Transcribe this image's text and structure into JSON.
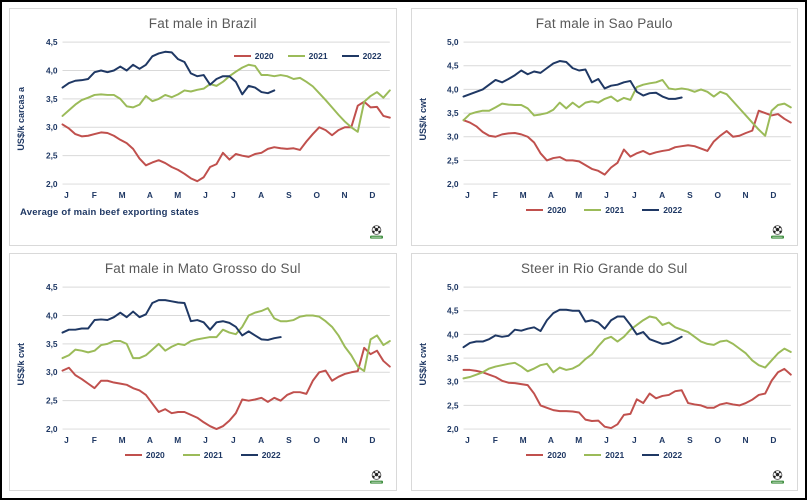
{
  "window": {
    "outer_border": "#000000",
    "panel_border": "#d9d9d9",
    "background": "#ffffff"
  },
  "palette": {
    "2020": "#c0504d",
    "2021": "#9bbb59",
    "2022": "#1f3864",
    "grid": "#d9d9d9",
    "axis_text": "#1f3864",
    "title_text": "#595959",
    "logo_banner": "#3f8f3f"
  },
  "legend_labels": {
    "s2020": "2020",
    "s2021": "2021",
    "s2022": "2022"
  },
  "x_month_labels": [
    "J",
    "F",
    "M",
    "A",
    "M",
    "J",
    "J",
    "A",
    "S",
    "O",
    "N",
    "D"
  ],
  "logo": {
    "icon": "soccer-ball-globe-logo"
  },
  "chart_data": [
    {
      "type": "line",
      "title": "Fat male in Brazil",
      "ylabel": "US$/k carcas a",
      "footnote": "Average of main beef exporting states",
      "legend_position": "top-right-inside",
      "grid": true,
      "ylim": [
        2.0,
        4.5
      ],
      "ytick_step": 0.5,
      "ytick_labels": [
        "2,0",
        "2,5",
        "3,0",
        "3,5",
        "4,0",
        "4,5"
      ],
      "x_unit": "weekly (Jan-Dec)",
      "series": [
        {
          "name": "2020",
          "values": [
            3.05,
            2.98,
            2.88,
            2.84,
            2.85,
            2.88,
            2.91,
            2.9,
            2.85,
            2.78,
            2.72,
            2.62,
            2.45,
            2.33,
            2.38,
            2.42,
            2.37,
            2.3,
            2.25,
            2.18,
            2.1,
            2.05,
            2.12,
            2.3,
            2.35,
            2.55,
            2.43,
            2.53,
            2.5,
            2.48,
            2.53,
            2.55,
            2.62,
            2.65,
            2.63,
            2.62,
            2.63,
            2.6,
            2.75,
            2.88,
            3.0,
            2.95,
            2.86,
            2.95,
            3.0,
            3.0,
            3.38,
            3.45,
            3.35,
            3.36,
            3.2,
            3.17
          ]
        },
        {
          "name": "2021",
          "values": [
            3.2,
            3.3,
            3.4,
            3.48,
            3.52,
            3.57,
            3.58,
            3.57,
            3.57,
            3.5,
            3.37,
            3.35,
            3.4,
            3.55,
            3.46,
            3.5,
            3.57,
            3.53,
            3.58,
            3.65,
            3.63,
            3.66,
            3.68,
            3.76,
            3.73,
            3.8,
            3.9,
            3.98,
            4.05,
            4.1,
            4.08,
            3.92,
            3.92,
            3.9,
            3.92,
            3.9,
            3.85,
            3.87,
            3.8,
            3.72,
            3.6,
            3.48,
            3.35,
            3.22,
            3.1,
            3.0,
            2.92,
            3.45,
            3.55,
            3.62,
            3.52,
            3.65
          ]
        },
        {
          "name": "2022",
          "values": [
            3.7,
            3.78,
            3.82,
            3.83,
            3.85,
            3.97,
            4.0,
            3.97,
            4.0,
            4.07,
            4.0,
            4.1,
            4.03,
            4.1,
            4.25,
            4.3,
            4.33,
            4.32,
            4.2,
            4.15,
            3.95,
            3.9,
            3.92,
            3.75,
            3.85,
            3.9,
            3.9,
            3.8,
            3.58,
            3.73,
            3.7,
            3.62,
            3.6,
            3.65
          ]
        }
      ]
    },
    {
      "type": "line",
      "title": "Fat male in Sao Paulo",
      "ylabel": "US$/k cwt",
      "footnote": "",
      "legend_position": "bottom-center",
      "grid": true,
      "ylim": [
        2.0,
        5.0
      ],
      "ytick_step": 0.5,
      "ytick_labels": [
        "2,0",
        "2,5",
        "3,0",
        "3,5",
        "4,0",
        "4,5",
        "5,0"
      ],
      "x_unit": "weekly (Jan-Dec)",
      "series": [
        {
          "name": "2020",
          "values": [
            3.35,
            3.3,
            3.22,
            3.1,
            3.02,
            3.0,
            3.05,
            3.07,
            3.08,
            3.05,
            3.0,
            2.88,
            2.65,
            2.5,
            2.55,
            2.57,
            2.5,
            2.5,
            2.48,
            2.4,
            2.32,
            2.28,
            2.2,
            2.35,
            2.45,
            2.73,
            2.58,
            2.65,
            2.7,
            2.63,
            2.67,
            2.7,
            2.72,
            2.78,
            2.8,
            2.82,
            2.8,
            2.75,
            2.7,
            2.9,
            3.02,
            3.12,
            3.0,
            3.02,
            3.08,
            3.13,
            3.55,
            3.5,
            3.45,
            3.48,
            3.38,
            3.3
          ]
        },
        {
          "name": "2021",
          "values": [
            3.35,
            3.48,
            3.52,
            3.55,
            3.55,
            3.62,
            3.7,
            3.68,
            3.67,
            3.67,
            3.6,
            3.45,
            3.47,
            3.5,
            3.57,
            3.72,
            3.6,
            3.72,
            3.62,
            3.72,
            3.75,
            3.72,
            3.8,
            3.85,
            3.75,
            3.82,
            3.78,
            4.05,
            4.1,
            4.13,
            4.15,
            4.2,
            4.02,
            4.0,
            4.02,
            4.0,
            3.95,
            4.0,
            3.95,
            3.85,
            3.95,
            3.9,
            3.75,
            3.6,
            3.45,
            3.3,
            3.15,
            3.02,
            3.55,
            3.67,
            3.7,
            3.62
          ]
        },
        {
          "name": "2022",
          "values": [
            3.85,
            3.9,
            3.95,
            4.0,
            4.1,
            4.2,
            4.15,
            4.22,
            4.3,
            4.4,
            4.32,
            4.38,
            4.35,
            4.45,
            4.55,
            4.6,
            4.58,
            4.45,
            4.4,
            4.42,
            4.15,
            4.22,
            4.02,
            4.08,
            4.1,
            4.15,
            4.18,
            3.95,
            3.87,
            3.92,
            3.93,
            3.85,
            3.8,
            3.8,
            3.83
          ]
        }
      ]
    },
    {
      "type": "line",
      "title": "Fat male in Mato Grosso do Sul",
      "ylabel": "US$/k cwt",
      "footnote": "",
      "legend_position": "bottom-center",
      "grid": true,
      "ylim": [
        2.0,
        4.5
      ],
      "ytick_step": 0.5,
      "ytick_labels": [
        "2,0",
        "2,5",
        "3,0",
        "3,5",
        "4,0",
        "4,5"
      ],
      "x_unit": "weekly (Jan-Dec)",
      "series": [
        {
          "name": "2020",
          "values": [
            3.03,
            3.08,
            2.95,
            2.88,
            2.8,
            2.72,
            2.85,
            2.85,
            2.82,
            2.8,
            2.78,
            2.72,
            2.68,
            2.6,
            2.45,
            2.3,
            2.35,
            2.28,
            2.3,
            2.3,
            2.25,
            2.2,
            2.12,
            2.05,
            2.0,
            2.05,
            2.15,
            2.28,
            2.52,
            2.5,
            2.52,
            2.55,
            2.48,
            2.55,
            2.5,
            2.6,
            2.65,
            2.65,
            2.62,
            2.85,
            3.0,
            3.03,
            2.85,
            2.92,
            2.97,
            3.0,
            3.02,
            3.43,
            3.32,
            3.38,
            3.2,
            3.1
          ]
        },
        {
          "name": "2021",
          "values": [
            3.25,
            3.3,
            3.4,
            3.38,
            3.35,
            3.38,
            3.48,
            3.5,
            3.55,
            3.55,
            3.5,
            3.25,
            3.25,
            3.3,
            3.4,
            3.5,
            3.38,
            3.45,
            3.5,
            3.48,
            3.55,
            3.58,
            3.6,
            3.62,
            3.62,
            3.75,
            3.7,
            3.67,
            3.8,
            4.0,
            4.05,
            4.08,
            4.13,
            3.95,
            3.9,
            3.9,
            3.92,
            3.98,
            4.0,
            4.0,
            3.98,
            3.9,
            3.8,
            3.65,
            3.45,
            3.3,
            3.1,
            3.02,
            3.58,
            3.65,
            3.48,
            3.55
          ]
        },
        {
          "name": "2022",
          "values": [
            3.7,
            3.75,
            3.75,
            3.77,
            3.77,
            3.92,
            3.93,
            3.92,
            3.97,
            4.05,
            3.97,
            4.07,
            3.97,
            4.02,
            4.22,
            4.27,
            4.27,
            4.25,
            4.23,
            4.22,
            3.9,
            3.92,
            3.88,
            3.75,
            3.88,
            3.9,
            3.87,
            3.8,
            3.65,
            3.72,
            3.65,
            3.58,
            3.57,
            3.6,
            3.62
          ]
        }
      ]
    },
    {
      "type": "line",
      "title": "Steer in Rio Grande do Sul",
      "ylabel": "US$/k cwt",
      "footnote": "",
      "legend_position": "bottom-center",
      "grid": true,
      "ylim": [
        2.0,
        5.0
      ],
      "ytick_step": 0.5,
      "ytick_labels": [
        "2,0",
        "2,5",
        "3,0",
        "3,5",
        "4,0",
        "4,5",
        "5,0"
      ],
      "x_unit": "weekly (Jan-Dec)",
      "series": [
        {
          "name": "2020",
          "values": [
            3.25,
            3.25,
            3.23,
            3.2,
            3.15,
            3.1,
            3.02,
            2.98,
            2.97,
            2.95,
            2.93,
            2.75,
            2.5,
            2.45,
            2.4,
            2.38,
            2.38,
            2.37,
            2.35,
            2.2,
            2.17,
            2.18,
            2.05,
            2.02,
            2.1,
            2.3,
            2.32,
            2.63,
            2.55,
            2.75,
            2.65,
            2.7,
            2.72,
            2.8,
            2.82,
            2.55,
            2.52,
            2.5,
            2.45,
            2.45,
            2.52,
            2.55,
            2.52,
            2.5,
            2.55,
            2.62,
            2.72,
            2.75,
            3.02,
            3.2,
            3.27,
            3.15
          ]
        },
        {
          "name": "2021",
          "values": [
            3.07,
            3.1,
            3.15,
            3.2,
            3.28,
            3.32,
            3.35,
            3.38,
            3.4,
            3.32,
            3.22,
            3.28,
            3.35,
            3.38,
            3.2,
            3.3,
            3.25,
            3.28,
            3.35,
            3.48,
            3.58,
            3.75,
            3.9,
            3.95,
            3.85,
            3.95,
            4.1,
            4.2,
            4.3,
            4.38,
            4.35,
            4.2,
            4.25,
            4.15,
            4.1,
            4.05,
            3.95,
            3.85,
            3.8,
            3.78,
            3.85,
            3.87,
            3.8,
            3.7,
            3.6,
            3.45,
            3.35,
            3.3,
            3.45,
            3.6,
            3.7,
            3.63
          ]
        },
        {
          "name": "2022",
          "values": [
            3.73,
            3.82,
            3.85,
            3.85,
            3.9,
            3.98,
            3.95,
            3.97,
            4.1,
            4.08,
            4.12,
            4.15,
            4.07,
            4.3,
            4.45,
            4.52,
            4.52,
            4.5,
            4.5,
            4.27,
            4.3,
            4.25,
            4.12,
            4.3,
            4.38,
            4.38,
            4.2,
            4.0,
            4.05,
            3.9,
            3.85,
            3.8,
            3.82,
            3.88,
            3.95
          ]
        }
      ]
    }
  ]
}
